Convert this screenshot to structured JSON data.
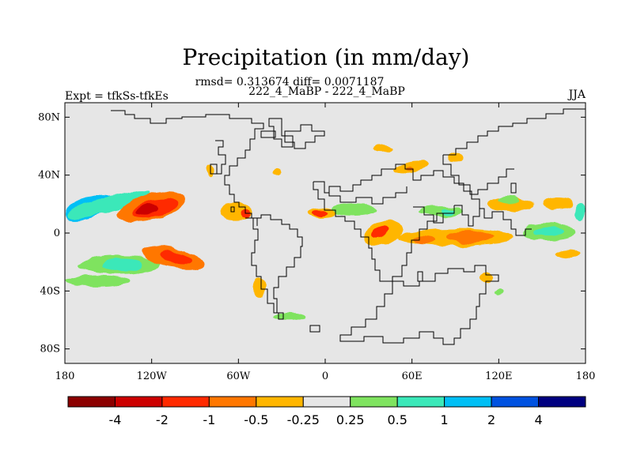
{
  "chart_data": {
    "type": "heatmap",
    "title": "Precipitation (in mm/day)",
    "stats_line": "rmsd= 0.313674 diff= 0.0071187",
    "subtitle_center": "222_4_MaBP - 222_4_MaBP",
    "subtitle_left": "Expt = tfkSs-tfkEs",
    "subtitle_right": "JJA",
    "xlim": [
      -180,
      180
    ],
    "ylim": [
      -90,
      90
    ],
    "x_ticks": [
      {
        "value": -180,
        "label": "180"
      },
      {
        "value": -120,
        "label": "120W"
      },
      {
        "value": -60,
        "label": "60W"
      },
      {
        "value": 0,
        "label": "0"
      },
      {
        "value": 60,
        "label": "60E"
      },
      {
        "value": 120,
        "label": "120E"
      },
      {
        "value": 180,
        "label": "180"
      }
    ],
    "y_ticks": [
      {
        "value": 80,
        "label": "80N"
      },
      {
        "value": 40,
        "label": "40N"
      },
      {
        "value": 0,
        "label": "0"
      },
      {
        "value": -40,
        "label": "40S"
      },
      {
        "value": -80,
        "label": "80S"
      }
    ],
    "colorbar": {
      "colors": [
        "#8b0000",
        "#cc0000",
        "#ff2a00",
        "#ff7700",
        "#ffb600",
        "#e6e6e6",
        "#7fe35f",
        "#3be8b9",
        "#00bff5",
        "#0052e0",
        "#000080"
      ],
      "labels": [
        "-4",
        "-2",
        "-1",
        "-0.5",
        "-0.25",
        "0.25",
        "0.5",
        "1",
        "2",
        "4"
      ]
    },
    "anomaly_regions": [
      {
        "name": "north-pacific-blue",
        "lon": -163,
        "lat": 18,
        "rx": 18,
        "ry": 7,
        "rot": -18,
        "value": 1.5
      },
      {
        "name": "north-pacific-band",
        "lon": -150,
        "lat": 20,
        "rx": 30,
        "ry": 5,
        "rot": -15,
        "value": 0.6
      },
      {
        "name": "north-pacific-red-outer",
        "lon": -120,
        "lat": 18,
        "rx": 24,
        "ry": 9,
        "rot": -14,
        "value": -0.6
      },
      {
        "name": "north-pacific-red",
        "lon": -118,
        "lat": 17,
        "rx": 16,
        "ry": 6,
        "rot": -14,
        "value": -1.5
      },
      {
        "name": "north-pacific-dark",
        "lon": -123,
        "lat": 16,
        "rx": 8,
        "ry": 3.5,
        "rot": -12,
        "value": -3.0
      },
      {
        "name": "south-pacific-green",
        "lon": -142,
        "lat": -22,
        "rx": 28,
        "ry": 6,
        "rot": 0,
        "value": 0.4
      },
      {
        "name": "south-pacific-cyan",
        "lon": -140,
        "lat": -22,
        "rx": 14,
        "ry": 4,
        "rot": 0,
        "value": 0.8
      },
      {
        "name": "south-pacific-red-outer",
        "lon": -105,
        "lat": -17,
        "rx": 22,
        "ry": 7,
        "rot": 12,
        "value": -0.6
      },
      {
        "name": "south-pacific-red",
        "lon": -103,
        "lat": -17,
        "rx": 11,
        "ry": 4,
        "rot": 12,
        "value": -1.5
      },
      {
        "name": "southeast-pacific-green",
        "lon": -158,
        "lat": -33,
        "rx": 22,
        "ry": 4,
        "rot": 0,
        "value": 0.4
      },
      {
        "name": "mexico-orange",
        "lon": -62,
        "lat": 15,
        "rx": 12,
        "ry": 5,
        "rot": 0,
        "value": -0.4
      },
      {
        "name": "gulf-red",
        "lon": -55,
        "lat": 14,
        "rx": 3.5,
        "ry": 2.5,
        "rot": 0,
        "value": -1.2
      },
      {
        "name": "north-america-orange",
        "lon": -79,
        "lat": 43,
        "rx": 3,
        "ry": 4,
        "rot": 0,
        "value": -0.5
      },
      {
        "name": "south-atlantic-orange",
        "lon": -45,
        "lat": -38,
        "rx": 4,
        "ry": 7,
        "rot": 0,
        "value": -0.4
      },
      {
        "name": "patagonia-green",
        "lon": -25,
        "lat": -58,
        "rx": 12,
        "ry": 3,
        "rot": 0,
        "value": 0.4
      },
      {
        "name": "north-atlantic-orange",
        "lon": -33,
        "lat": 42,
        "rx": 3,
        "ry": 2,
        "rot": 0,
        "value": -0.4
      },
      {
        "name": "sahel-green",
        "lon": 20,
        "lat": 16,
        "rx": 16,
        "ry": 4,
        "rot": 0,
        "value": 0.4
      },
      {
        "name": "west-africa-red-outer",
        "lon": -3,
        "lat": 14,
        "rx": 10,
        "ry": 3,
        "rot": 0,
        "value": -0.5
      },
      {
        "name": "west-africa-red",
        "lon": -4,
        "lat": 14,
        "rx": 5,
        "ry": 2,
        "rot": 0,
        "value": -1.2
      },
      {
        "name": "east-africa-orange",
        "lon": 40,
        "lat": 0,
        "rx": 14,
        "ry": 8,
        "rot": -20,
        "value": -0.5
      },
      {
        "name": "east-africa-red",
        "lon": 38,
        "lat": 1,
        "rx": 7,
        "ry": 3.5,
        "rot": -25,
        "value": -1.3
      },
      {
        "name": "indian-ocean-orange",
        "lon": 90,
        "lat": -3,
        "rx": 40,
        "ry": 6,
        "rot": 0,
        "value": -0.4
      },
      {
        "name": "indian-ocean-red",
        "lon": 100,
        "lat": -3,
        "rx": 16,
        "ry": 4,
        "rot": 0,
        "value": -0.9
      },
      {
        "name": "indian-ocean-red-west",
        "lon": 68,
        "lat": -5,
        "rx": 7,
        "ry": 3,
        "rot": 0,
        "value": -0.9
      },
      {
        "name": "arabia-green",
        "lon": 80,
        "lat": 15,
        "rx": 16,
        "ry": 3.5,
        "rot": 0,
        "value": 0.4
      },
      {
        "name": "india-cyan",
        "lon": 85,
        "lat": 15,
        "rx": 5,
        "ry": 2,
        "rot": 0,
        "value": 0.8
      },
      {
        "name": "asia-orange",
        "lon": 60,
        "lat": 46,
        "rx": 12,
        "ry": 4,
        "rot": -10,
        "value": -0.4
      },
      {
        "name": "asia-red",
        "lon": 58,
        "lat": 45,
        "rx": 3,
        "ry": 1.5,
        "rot": 0,
        "value": -0.9
      },
      {
        "name": "siberia-orange",
        "lon": 90,
        "lat": 52,
        "rx": 5,
        "ry": 3,
        "rot": 0,
        "value": -0.4
      },
      {
        "name": "arctic-orange",
        "lon": 40,
        "lat": 58,
        "rx": 6,
        "ry": 2.5,
        "rot": 0,
        "value": -0.4
      },
      {
        "name": "east-asia-orange",
        "lon": 128,
        "lat": 20,
        "rx": 16,
        "ry": 5,
        "rot": 0,
        "value": -0.4
      },
      {
        "name": "east-asia-green",
        "lon": 127,
        "lat": 23,
        "rx": 8,
        "ry": 3,
        "rot": 0,
        "value": 0.4
      },
      {
        "name": "west-pacific-orange",
        "lon": 160,
        "lat": 20,
        "rx": 10,
        "ry": 4,
        "rot": 0,
        "value": -0.4
      },
      {
        "name": "tropical-pacific-green",
        "lon": 155,
        "lat": 1,
        "rx": 18,
        "ry": 6,
        "rot": 0,
        "value": 0.4
      },
      {
        "name": "tropical-pacific-cyan",
        "lon": 155,
        "lat": 1,
        "rx": 10,
        "ry": 3,
        "rot": 0,
        "value": 0.8
      },
      {
        "name": "southwest-pacific-orange",
        "lon": 168,
        "lat": -14,
        "rx": 9,
        "ry": 3,
        "rot": 0,
        "value": -0.4
      },
      {
        "name": "australia-orange",
        "lon": 112,
        "lat": -31,
        "rx": 4,
        "ry": 3,
        "rot": 0,
        "value": -0.4
      },
      {
        "name": "south-indian-green",
        "lon": 120,
        "lat": -40,
        "rx": 4,
        "ry": 2,
        "rot": 0,
        "value": 0.4
      },
      {
        "name": "dateline-east-cyan",
        "lon": 176,
        "lat": 15,
        "rx": 4,
        "ry": 6,
        "rot": 0,
        "value": 0.8
      }
    ]
  }
}
